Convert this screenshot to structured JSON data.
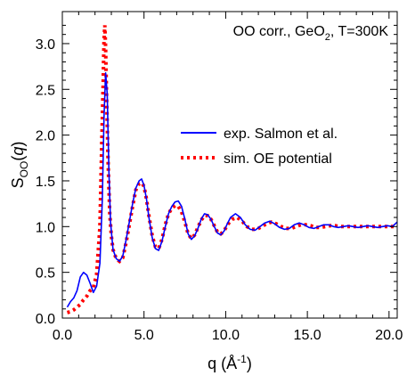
{
  "chart_data": {
    "type": "line",
    "title": "",
    "annotation": {
      "prefix": "OO corr., GeO",
      "sub": "2",
      "suffix": ", T=300K"
    },
    "xlabel": {
      "main": "q (Å",
      "sup": "-1",
      "close": ")"
    },
    "ylabel": {
      "main": "S",
      "sub": "OO",
      "open": "(",
      "var": "q",
      "close": ")"
    },
    "xlim": [
      0,
      20.5
    ],
    "ylim": [
      0,
      3.35
    ],
    "x_ticks": [
      {
        "value": 0,
        "label": "0.0"
      },
      {
        "value": 5,
        "label": "5.0"
      },
      {
        "value": 10,
        "label": "10.0"
      },
      {
        "value": 15,
        "label": "15.0"
      },
      {
        "value": 20,
        "label": "20.0"
      }
    ],
    "y_ticks": [
      {
        "value": 0,
        "label": "0.0"
      },
      {
        "value": 0.5,
        "label": "0.5"
      },
      {
        "value": 1,
        "label": "1.0"
      },
      {
        "value": 1.5,
        "label": "1.5"
      },
      {
        "value": 2,
        "label": "2.0"
      },
      {
        "value": 2.5,
        "label": "2.5"
      },
      {
        "value": 3,
        "label": "3.0"
      }
    ],
    "grid": false,
    "legend_position": "right",
    "series": [
      {
        "name": "exp. Salmon et al.",
        "color": "#0000ff",
        "style": "solid",
        "x": [
          0.3,
          0.5,
          0.7,
          0.9,
          1.1,
          1.3,
          1.5,
          1.7,
          1.9,
          2.1,
          2.3,
          2.45,
          2.55,
          2.65,
          2.75,
          2.85,
          2.95,
          3.1,
          3.3,
          3.5,
          3.7,
          3.9,
          4.1,
          4.3,
          4.5,
          4.7,
          4.85,
          5.0,
          5.15,
          5.3,
          5.5,
          5.7,
          5.9,
          6.1,
          6.3,
          6.5,
          6.7,
          6.9,
          7.1,
          7.3,
          7.5,
          7.7,
          7.9,
          8.1,
          8.3,
          8.5,
          8.7,
          8.9,
          9.1,
          9.3,
          9.5,
          9.7,
          9.9,
          10.1,
          10.3,
          10.6,
          10.9,
          11.2,
          11.5,
          11.8,
          12.1,
          12.4,
          12.7,
          13.0,
          13.3,
          13.6,
          13.9,
          14.2,
          14.5,
          14.8,
          15.1,
          15.4,
          15.7,
          16.0,
          16.3,
          16.6,
          16.9,
          17.2,
          17.5,
          17.8,
          18.1,
          18.4,
          18.7,
          19.0,
          19.3,
          19.6,
          19.9,
          20.2,
          20.5
        ],
        "y": [
          0.12,
          0.18,
          0.22,
          0.3,
          0.45,
          0.5,
          0.47,
          0.38,
          0.28,
          0.35,
          0.6,
          1.3,
          2.2,
          2.68,
          2.45,
          1.6,
          1.05,
          0.75,
          0.65,
          0.62,
          0.68,
          0.85,
          1.05,
          1.25,
          1.42,
          1.5,
          1.52,
          1.45,
          1.3,
          1.1,
          0.88,
          0.76,
          0.74,
          0.84,
          1.0,
          1.14,
          1.22,
          1.27,
          1.28,
          1.22,
          1.08,
          0.92,
          0.86,
          0.9,
          0.98,
          1.08,
          1.14,
          1.13,
          1.08,
          1.0,
          0.93,
          0.91,
          0.95,
          1.03,
          1.1,
          1.14,
          1.1,
          1.02,
          0.97,
          0.96,
          1.0,
          1.04,
          1.06,
          1.03,
          0.99,
          0.97,
          0.98,
          1.02,
          1.04,
          1.02,
          0.99,
          0.98,
          1.0,
          1.02,
          1.02,
          1.0,
          0.99,
          1.0,
          1.01,
          1.0,
          0.99,
          1.0,
          1.01,
          1.0,
          0.99,
          1.0,
          1.01,
          1.0,
          1.05
        ]
      },
      {
        "name": "sim. OE potential",
        "color": "#ff0000",
        "style": "dotted",
        "x": [
          0.3,
          0.5,
          0.7,
          0.9,
          1.1,
          1.3,
          1.5,
          1.7,
          1.9,
          2.1,
          2.3,
          2.4,
          2.5,
          2.55,
          2.6,
          2.65,
          2.7,
          2.8,
          2.9,
          3.0,
          3.1,
          3.3,
          3.5,
          3.7,
          3.9,
          4.1,
          4.3,
          4.5,
          4.7,
          4.85,
          5.0,
          5.15,
          5.3,
          5.5,
          5.7,
          5.9,
          6.1,
          6.3,
          6.5,
          6.7,
          6.9,
          7.1,
          7.3,
          7.5,
          7.7,
          7.9,
          8.1,
          8.3,
          8.5,
          8.7,
          8.9,
          9.1,
          9.3,
          9.5,
          9.7,
          9.9,
          10.1,
          10.4,
          10.7,
          11.0,
          11.3,
          11.6,
          11.9,
          12.2,
          12.5,
          12.8,
          13.1,
          13.4,
          13.7,
          14.0,
          14.3,
          14.6,
          14.9,
          15.2,
          15.5,
          15.8,
          16.1,
          16.4,
          16.7,
          17.0,
          17.3,
          17.6,
          17.9,
          18.2,
          18.5,
          18.8,
          19.1,
          19.4,
          19.7,
          20.0,
          20.3
        ],
        "y": [
          0.06,
          0.07,
          0.09,
          0.12,
          0.15,
          0.2,
          0.24,
          0.3,
          0.33,
          0.48,
          1.0,
          1.8,
          2.6,
          3.05,
          3.2,
          2.95,
          2.5,
          1.7,
          1.15,
          0.9,
          0.75,
          0.65,
          0.62,
          0.66,
          0.82,
          1.02,
          1.22,
          1.4,
          1.47,
          1.48,
          1.44,
          1.3,
          1.12,
          0.9,
          0.78,
          0.76,
          0.86,
          1.02,
          1.14,
          1.2,
          1.23,
          1.22,
          1.16,
          1.05,
          0.92,
          0.87,
          0.91,
          0.99,
          1.07,
          1.12,
          1.12,
          1.08,
          1.01,
          0.94,
          0.92,
          0.95,
          1.02,
          1.08,
          1.1,
          1.06,
          1.0,
          0.97,
          0.97,
          1.0,
          1.03,
          1.05,
          1.03,
          1.0,
          0.98,
          0.98,
          1.0,
          1.02,
          1.02,
          1.01,
          0.99,
          0.99,
          1.0,
          1.01,
          1.01,
          1.0,
          1.0,
          1.0,
          1.0,
          1.0,
          1.0,
          1.0,
          1.0,
          1.0,
          1.0,
          1.0,
          1.0
        ]
      }
    ]
  }
}
